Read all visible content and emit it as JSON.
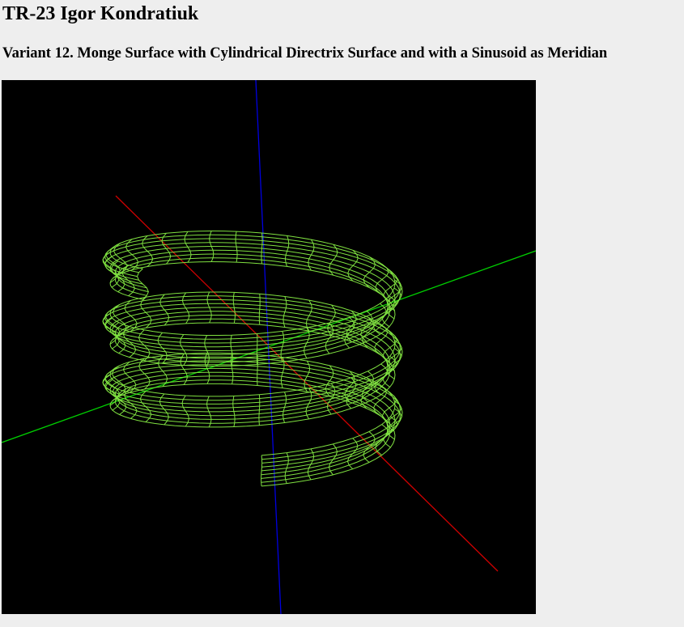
{
  "title": "TR-23 Igor Kondratiuk",
  "subtitle": "Variant 12. Monge Surface with Cylindrical Directrix Surface and with a Sinusoid as Meridian"
}
